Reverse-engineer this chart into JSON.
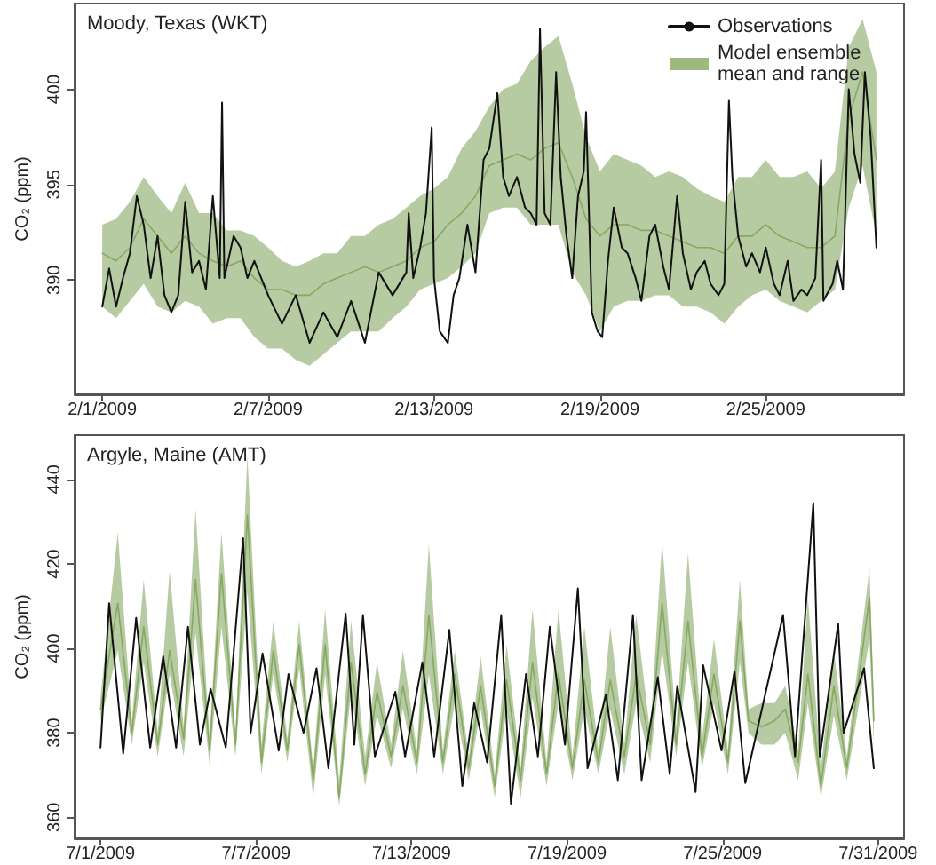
{
  "chart_data": [
    {
      "type": "line",
      "title": "Moody, Texas (WKT)",
      "ylabel": "CO₂ (ppm)",
      "xlim": [
        "2009-01-31",
        "2009-03-02"
      ],
      "ylim": [
        384,
        404.5
      ],
      "yticks": [
        390,
        395,
        400
      ],
      "xticks": [
        {
          "value": "2009-02-01",
          "label": "2/1/2009"
        },
        {
          "value": "2009-02-07",
          "label": "2/7/2009"
        },
        {
          "value": "2009-02-13",
          "label": "2/13/2009"
        },
        {
          "value": "2009-02-19",
          "label": "2/19/2009"
        },
        {
          "value": "2009-02-25",
          "label": "2/25/2009"
        }
      ],
      "legend": "top right",
      "line_style": "solid",
      "series": [
        {
          "name": "Model ensemble mean and range",
          "color": "#86a962",
          "x": [
            "2009-02-01T00:00",
            "2009-02-01T12:00",
            "2009-02-02T00:00",
            "2009-02-02T12:00",
            "2009-02-03T00:00",
            "2009-02-03T12:00",
            "2009-02-04T00:00",
            "2009-02-04T12:00",
            "2009-02-05T00:00",
            "2009-02-05T12:00",
            "2009-02-06T00:00",
            "2009-02-06T12:00",
            "2009-02-07T00:00",
            "2009-02-07T12:00",
            "2009-02-08T00:00",
            "2009-02-08T12:00",
            "2009-02-09T00:00",
            "2009-02-09T12:00",
            "2009-02-10T00:00",
            "2009-02-10T12:00",
            "2009-02-11T00:00",
            "2009-02-11T12:00",
            "2009-02-12T00:00",
            "2009-02-12T12:00",
            "2009-02-13T00:00",
            "2009-02-13T12:00",
            "2009-02-14T00:00",
            "2009-02-14T12:00",
            "2009-02-15T00:00",
            "2009-02-15T12:00",
            "2009-02-16T00:00",
            "2009-02-16T12:00",
            "2009-02-17T00:00",
            "2009-02-17T12:00",
            "2009-02-18T00:00",
            "2009-02-18T12:00",
            "2009-02-19T00:00",
            "2009-02-19T12:00",
            "2009-02-20T00:00",
            "2009-02-20T12:00",
            "2009-02-21T00:00",
            "2009-02-21T12:00",
            "2009-02-22T00:00",
            "2009-02-22T12:00",
            "2009-02-23T00:00",
            "2009-02-23T12:00",
            "2009-02-24T00:00",
            "2009-02-24T12:00",
            "2009-02-25T00:00",
            "2009-02-25T12:00",
            "2009-02-26T00:00",
            "2009-02-26T12:00",
            "2009-02-27T00:00",
            "2009-02-27T12:00",
            "2009-02-28T00:00",
            "2009-02-28T12:00",
            "2009-03-01T00:00"
          ],
          "values": [
            391.4,
            391.0,
            391.7,
            393.2,
            392.3,
            391.4,
            392.3,
            391.4,
            391.0,
            390.7,
            391.0,
            390.1,
            389.5,
            389.5,
            389.2,
            389.2,
            389.8,
            390.1,
            390.4,
            390.7,
            390.4,
            390.7,
            391.0,
            391.7,
            392.0,
            392.9,
            393.5,
            394.4,
            396.0,
            396.3,
            396.6,
            396.3,
            396.9,
            397.2,
            395.4,
            393.2,
            392.3,
            392.9,
            392.9,
            392.6,
            392.6,
            392.3,
            392.0,
            391.7,
            391.7,
            391.4,
            392.3,
            392.3,
            392.9,
            392.3,
            392.0,
            391.7,
            391.7,
            392.3,
            398.5,
            400.9,
            396.3
          ],
          "upper": [
            392.9,
            393.2,
            394.1,
            395.4,
            394.4,
            393.5,
            395.1,
            393.5,
            393.5,
            392.6,
            392.6,
            392.3,
            391.7,
            391.0,
            390.7,
            391.0,
            391.4,
            391.4,
            392.3,
            392.3,
            392.9,
            393.2,
            393.8,
            394.4,
            394.8,
            395.4,
            396.9,
            397.8,
            399.1,
            400.0,
            400.3,
            401.5,
            402.2,
            402.8,
            400.3,
            397.5,
            395.7,
            396.6,
            396.3,
            396.0,
            395.4,
            395.7,
            395.4,
            394.8,
            394.4,
            394.1,
            395.4,
            395.4,
            396.3,
            395.4,
            395.4,
            395.7,
            394.8,
            395.7,
            402.2,
            403.7,
            400.9
          ],
          "lower": [
            388.6,
            388.0,
            388.9,
            389.8,
            388.6,
            388.3,
            388.9,
            388.6,
            387.7,
            388.0,
            388.0,
            387.0,
            386.4,
            386.4,
            385.8,
            385.5,
            386.1,
            386.7,
            387.3,
            387.3,
            387.3,
            388.0,
            388.6,
            389.5,
            389.8,
            390.1,
            390.7,
            391.4,
            393.5,
            393.8,
            393.8,
            392.9,
            392.9,
            392.9,
            390.4,
            389.2,
            387.3,
            388.6,
            388.9,
            388.9,
            389.2,
            389.2,
            388.6,
            388.6,
            388.3,
            387.7,
            388.6,
            389.2,
            389.5,
            388.9,
            388.6,
            388.3,
            388.9,
            389.5,
            393.8,
            396.0,
            392.3
          ]
        },
        {
          "name": "Observations",
          "color": "#111111",
          "x": [
            "2009-02-01T00:00",
            "2009-02-01T06:00",
            "2009-02-01T12:00",
            "2009-02-01T18:00",
            "2009-02-02T00:00",
            "2009-02-02T06:00",
            "2009-02-02T12:00",
            "2009-02-02T18:00",
            "2009-02-03T00:00",
            "2009-02-03T06:00",
            "2009-02-03T12:00",
            "2009-02-03T18:00",
            "2009-02-04T00:00",
            "2009-02-04T06:00",
            "2009-02-04T12:00",
            "2009-02-04T18:00",
            "2009-02-05T00:00",
            "2009-02-05T06:00",
            "2009-02-05T08:00",
            "2009-02-05T10:00",
            "2009-02-05T18:00",
            "2009-02-06T00:00",
            "2009-02-06T06:00",
            "2009-02-06T12:00",
            "2009-02-07T00:00",
            "2009-02-07T12:00",
            "2009-02-08T00:00",
            "2009-02-08T12:00",
            "2009-02-09T00:00",
            "2009-02-09T12:00",
            "2009-02-10T00:00",
            "2009-02-10T12:00",
            "2009-02-11T00:00",
            "2009-02-11T12:00",
            "2009-02-12T00:00",
            "2009-02-12T02:00",
            "2009-02-12T06:00",
            "2009-02-12T12:00",
            "2009-02-12T17:00",
            "2009-02-12T22:00",
            "2009-02-13T00:00",
            "2009-02-13T05:00",
            "2009-02-13T12:00",
            "2009-02-13T17:00",
            "2009-02-13T22:00",
            "2009-02-14T05:00",
            "2009-02-14T12:00",
            "2009-02-14T19:00",
            "2009-02-15T00:00",
            "2009-02-15T07:00",
            "2009-02-15T12:00",
            "2009-02-15T17:00",
            "2009-02-16T00:00",
            "2009-02-16T07:00",
            "2009-02-16T12:00",
            "2009-02-16T17:00",
            "2009-02-16T20:00",
            "2009-02-17T00:00",
            "2009-02-17T05:00",
            "2009-02-17T10:00",
            "2009-02-17T14:00",
            "2009-02-17T19:00",
            "2009-02-18T00:00",
            "2009-02-18T05:00",
            "2009-02-18T10:00",
            "2009-02-18T12:00",
            "2009-02-18T17:00",
            "2009-02-18T22:00",
            "2009-02-19T02:00",
            "2009-02-19T07:00",
            "2009-02-19T12:00",
            "2009-02-19T19:00",
            "2009-02-20T00:00",
            "2009-02-20T07:00",
            "2009-02-20T12:00",
            "2009-02-20T19:00",
            "2009-02-21T00:00",
            "2009-02-21T07:00",
            "2009-02-21T12:00",
            "2009-02-21T19:00",
            "2009-02-22T00:00",
            "2009-02-22T07:00",
            "2009-02-22T12:00",
            "2009-02-22T19:00",
            "2009-02-23T00:00",
            "2009-02-23T07:00",
            "2009-02-23T12:00",
            "2009-02-23T16:00",
            "2009-02-23T19:00",
            "2009-02-24T00:00",
            "2009-02-24T07:00",
            "2009-02-24T12:00",
            "2009-02-24T19:00",
            "2009-02-25T00:00",
            "2009-02-25T07:00",
            "2009-02-25T12:00",
            "2009-02-25T19:00",
            "2009-02-26T00:00",
            "2009-02-26T07:00",
            "2009-02-26T12:00",
            "2009-02-26T19:00",
            "2009-02-27T00:00",
            "2009-02-27T02:00",
            "2009-02-27T10:00",
            "2009-02-27T14:00",
            "2009-02-27T19:00",
            "2009-02-28T00:00",
            "2009-02-28T05:00",
            "2009-02-28T10:00",
            "2009-02-28T14:00",
            "2009-02-28T19:00",
            "2009-03-01T00:00"
          ],
          "values": [
            388.6,
            390.6,
            388.6,
            390.1,
            391.4,
            394.4,
            392.9,
            390.1,
            392.3,
            389.2,
            388.3,
            389.2,
            394.1,
            390.4,
            391.0,
            389.5,
            394.4,
            390.1,
            399.3,
            390.1,
            392.3,
            391.7,
            390.1,
            391.0,
            389.2,
            387.7,
            389.2,
            386.7,
            388.3,
            387.0,
            388.9,
            386.7,
            390.4,
            389.2,
            390.4,
            393.5,
            390.1,
            391.7,
            393.5,
            398.0,
            390.1,
            387.3,
            386.7,
            389.2,
            390.1,
            392.9,
            390.4,
            396.3,
            396.9,
            399.8,
            395.4,
            394.4,
            395.4,
            393.8,
            393.5,
            392.9,
            403.2,
            393.5,
            392.9,
            400.9,
            395.4,
            392.3,
            390.1,
            394.4,
            395.7,
            398.8,
            388.3,
            387.3,
            387.0,
            391.0,
            393.8,
            391.7,
            391.4,
            390.1,
            388.9,
            392.3,
            392.9,
            390.7,
            389.5,
            394.4,
            391.4,
            389.5,
            390.4,
            391.0,
            389.8,
            389.2,
            389.8,
            399.4,
            395.4,
            392.3,
            390.7,
            391.4,
            390.4,
            391.7,
            389.8,
            389.2,
            391.0,
            388.9,
            389.5,
            389.2,
            390.1,
            396.3,
            388.9,
            389.8,
            391.0,
            389.5,
            400.0,
            396.6,
            395.1,
            400.9,
            397.5,
            391.7
          ]
        }
      ]
    },
    {
      "type": "line",
      "title": "Argyle, Maine (AMT)",
      "ylabel": "CO₂ (ppm)",
      "xlim": [
        "2009-06-30",
        "2009-08-01"
      ],
      "ylim": [
        355,
        450.5
      ],
      "yticks": [
        360,
        380,
        400,
        420,
        440
      ],
      "xticks": [
        {
          "value": "2009-07-01",
          "label": "7/1/2009"
        },
        {
          "value": "2009-07-07",
          "label": "7/7/2009"
        },
        {
          "value": "2009-07-13",
          "label": "7/13/2009"
        },
        {
          "value": "2009-07-19",
          "label": "7/19/2009"
        },
        {
          "value": "2009-07-25",
          "label": "7/25/2009"
        },
        {
          "value": "2009-07-31",
          "label": "7/31/2009"
        }
      ],
      "line_style": "solid",
      "series": [
        {
          "color": "#86a962",
          "x": [
            "2009-07-01T00:00",
            "2009-07-01T16:00",
            "2009-07-02T05:00",
            "2009-07-02T16:00",
            "2009-07-03T05:00",
            "2009-07-03T16:00",
            "2009-07-04T05:00",
            "2009-07-04T16:00",
            "2009-07-05T05:00",
            "2009-07-05T16:00",
            "2009-07-06T05:00",
            "2009-07-06T16:00",
            "2009-07-07T05:00",
            "2009-07-07T16:00",
            "2009-07-08T05:00",
            "2009-07-08T16:00",
            "2009-07-09T05:00",
            "2009-07-09T16:00",
            "2009-07-10T05:00",
            "2009-07-10T16:00",
            "2009-07-11T05:00",
            "2009-07-11T16:00",
            "2009-07-12T05:00",
            "2009-07-12T16:00",
            "2009-07-13T05:00",
            "2009-07-13T16:00",
            "2009-07-14T05:00",
            "2009-07-14T16:00",
            "2009-07-15T05:00",
            "2009-07-15T16:00",
            "2009-07-16T05:00",
            "2009-07-16T16:00",
            "2009-07-17T05:00",
            "2009-07-17T16:00",
            "2009-07-18T05:00",
            "2009-07-18T16:00",
            "2009-07-19T05:00",
            "2009-07-19T16:00",
            "2009-07-20T05:00",
            "2009-07-20T16:00",
            "2009-07-21T05:00",
            "2009-07-21T16:00",
            "2009-07-22T05:00",
            "2009-07-22T16:00",
            "2009-07-23T05:00",
            "2009-07-23T16:00",
            "2009-07-24T05:00",
            "2009-07-24T16:00",
            "2009-07-25T05:00",
            "2009-07-25T16:00",
            "2009-07-26T00:00",
            "2009-07-26T12:00",
            "2009-07-27T00:00",
            "2009-07-27T10:00",
            "2009-07-27T22:00",
            "2009-07-28T07:00",
            "2009-07-28T19:00",
            "2009-07-29T07:00",
            "2009-07-29T19:00",
            "2009-07-30T16:00",
            "2009-07-30T20:00"
          ],
          "values": [
            385.6,
            410.7,
            380.0,
            405.1,
            377.2,
            399.5,
            378.6,
            416.3,
            375.8,
            417.7,
            377.2,
            431.6,
            373.0,
            399.5,
            375.8,
            400.9,
            368.8,
            400.9,
            364.6,
            396.7,
            370.2,
            389.7,
            374.4,
            391.1,
            373.0,
            407.9,
            373.0,
            393.9,
            371.6,
            391.1,
            367.4,
            392.5,
            368.8,
            396.7,
            370.2,
            393.9,
            371.6,
            392.5,
            373.0,
            392.5,
            374.4,
            393.9,
            377.2,
            410.7,
            377.2,
            406.5,
            374.4,
            393.9,
            373.0,
            406.5,
            382.8,
            381.4,
            382.8,
            385.6,
            373.0,
            393.9,
            367.4,
            391.1,
            371.6,
            412.1,
            382.8
          ],
          "upper": [
            388.4,
            427.5,
            382.8,
            416.3,
            380.0,
            418.4,
            381.4,
            433.0,
            378.6,
            427.5,
            380.0,
            445.6,
            377.2,
            406.5,
            378.6,
            406.5,
            371.6,
            409.3,
            368.8,
            406.5,
            374.4,
            396.7,
            377.2,
            399.5,
            375.8,
            424.7,
            375.8,
            399.5,
            374.4,
            398.1,
            370.2,
            400.9,
            371.6,
            409.3,
            373.0,
            409.3,
            374.4,
            405.1,
            375.8,
            405.1,
            377.2,
            407.9,
            380.0,
            425.4,
            381.4,
            422.6,
            378.6,
            402.3,
            375.8,
            416.3,
            385.6,
            387.0,
            387.0,
            391.1,
            375.8,
            412.1,
            371.6,
            399.5,
            374.4,
            419.1,
            387.0
          ],
          "lower": [
            382.8,
            399.5,
            377.2,
            396.7,
            374.4,
            393.9,
            374.4,
            403.7,
            372.3,
            405.1,
            374.4,
            413.5,
            370.2,
            393.9,
            373.0,
            395.3,
            364.6,
            393.9,
            362.5,
            389.7,
            367.4,
            384.2,
            371.6,
            385.6,
            370.2,
            393.9,
            370.2,
            387.0,
            368.8,
            385.6,
            364.6,
            385.6,
            364.6,
            388.4,
            367.4,
            387.0,
            368.8,
            385.6,
            370.2,
            385.6,
            370.2,
            387.0,
            373.0,
            399.5,
            374.4,
            396.7,
            371.6,
            387.0,
            370.2,
            396.7,
            380.0,
            377.2,
            377.2,
            380.0,
            368.8,
            387.0,
            364.6,
            384.2,
            368.8,
            402.3,
            377.2
          ]
        },
        {
          "color": "#111111",
          "x": [
            "2009-07-01T00:00",
            "2009-07-01T08:00",
            "2009-07-01T21:00",
            "2009-07-02T09:00",
            "2009-07-02T22:00",
            "2009-07-03T10:00",
            "2009-07-03T22:00",
            "2009-07-04T09:00",
            "2009-07-04T20:00",
            "2009-07-05T06:00",
            "2009-07-05T20:00",
            "2009-07-06T12:00",
            "2009-07-06T19:00",
            "2009-07-07T06:00",
            "2009-07-07T21:00",
            "2009-07-08T06:00",
            "2009-07-08T20:00",
            "2009-07-09T08:00",
            "2009-07-09T19:00",
            "2009-07-10T11:00",
            "2009-07-10T19:00",
            "2009-07-11T03:00",
            "2009-07-11T14:00",
            "2009-07-12T09:00",
            "2009-07-12T18:00",
            "2009-07-13T10:00",
            "2009-07-13T21:00",
            "2009-07-14T11:00",
            "2009-07-14T23:00",
            "2009-07-15T10:00",
            "2009-07-15T22:00",
            "2009-07-16T11:00",
            "2009-07-16T20:00",
            "2009-07-17T10:00",
            "2009-07-17T21:00",
            "2009-07-18T08:00",
            "2009-07-18T22:00",
            "2009-07-19T10:00",
            "2009-07-19T19:00",
            "2009-07-20T12:00",
            "2009-07-20T23:00",
            "2009-07-21T13:00",
            "2009-07-21T21:00",
            "2009-07-22T12:00",
            "2009-07-22T23:00",
            "2009-07-23T06:00",
            "2009-07-23T23:00",
            "2009-07-24T06:00",
            "2009-07-24T23:00",
            "2009-07-25T11:00",
            "2009-07-25T21:00",
            "2009-07-27T08:00",
            "2009-07-27T19:00",
            "2009-07-28T12:00",
            "2009-07-28T18:00",
            "2009-07-29T11:00",
            "2009-07-29T16:00",
            "2009-07-30T11:00",
            "2009-07-30T20:00"
          ],
          "values": [
            376.5,
            410.7,
            375.1,
            407.2,
            376.5,
            398.1,
            376.5,
            405.1,
            377.2,
            390.4,
            376.5,
            426.1,
            380.0,
            398.8,
            375.8,
            393.9,
            380.0,
            395.3,
            371.6,
            408.2,
            377.2,
            407.9,
            374.4,
            389.7,
            374.4,
            396.7,
            374.4,
            404.4,
            367.4,
            387.0,
            373.0,
            407.9,
            363.2,
            393.9,
            374.4,
            405.1,
            377.2,
            414.2,
            371.6,
            389.1,
            368.8,
            407.9,
            368.8,
            393.2,
            370.2,
            391.1,
            366.0,
            396.0,
            375.8,
            394.6,
            368.1,
            407.9,
            374.4,
            434.4,
            374.4,
            405.8,
            380.0,
            395.3,
            371.6
          ]
        }
      ]
    }
  ]
}
